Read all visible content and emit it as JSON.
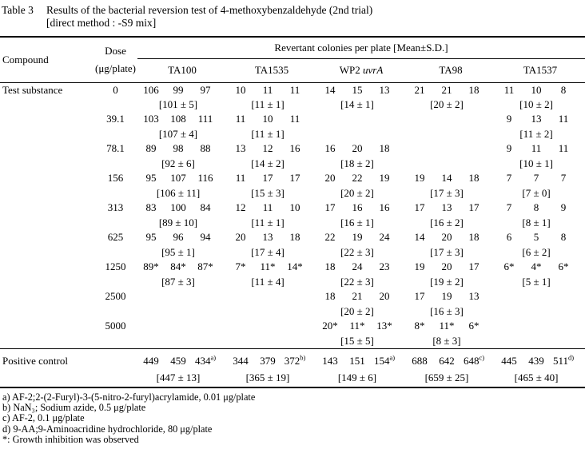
{
  "title": {
    "label": "Table 3",
    "line1": "Results of the bacterial reversion test of 4-methoxybenzaldehyde (2nd trial)",
    "line2": "[direct method : -S9 mix]"
  },
  "table": {
    "header": {
      "compound": "Compound",
      "dose_line1": "Dose",
      "dose_line2": "(μg/plate)",
      "span_header": "Revertant colonies per plate [Mean±S.D.]",
      "strains": [
        {
          "text": "TA100",
          "italic": ""
        },
        {
          "text": "TA1535",
          "italic": ""
        },
        {
          "text": "WP2 ",
          "italic": "uvrA"
        },
        {
          "text": "TA98",
          "italic": ""
        },
        {
          "text": "TA1537",
          "italic": ""
        }
      ]
    },
    "rows": [
      {
        "compound": "Test substance",
        "dose": "0",
        "values": [
          [
            "106",
            "99",
            "97"
          ],
          [
            "10",
            "11",
            "11"
          ],
          [
            "14",
            "15",
            "13"
          ],
          [
            "21",
            "21",
            "18"
          ],
          [
            "11",
            "10",
            "8"
          ]
        ],
        "means": [
          "[101 ± 5]",
          "[11 ± 1]",
          "[14 ± 1]",
          "[20 ± 2]",
          "[10 ± 2]"
        ]
      },
      {
        "compound": "",
        "dose": "39.1",
        "values": [
          [
            "103",
            "108",
            "111"
          ],
          [
            "11",
            "10",
            "11"
          ],
          [
            "",
            "",
            ""
          ],
          [
            "",
            "",
            ""
          ],
          [
            "9",
            "13",
            "11"
          ]
        ],
        "means": [
          "[107 ± 4]",
          "[11 ± 1]",
          "",
          "",
          "[11 ± 2]"
        ]
      },
      {
        "compound": "",
        "dose": "78.1",
        "values": [
          [
            "89",
            "98",
            "88"
          ],
          [
            "13",
            "12",
            "16"
          ],
          [
            "16",
            "20",
            "18"
          ],
          [
            "",
            "",
            ""
          ],
          [
            "9",
            "11",
            "11"
          ]
        ],
        "means": [
          "[92 ± 6]",
          "[14 ± 2]",
          "[18 ± 2]",
          "",
          "[10 ± 1]"
        ]
      },
      {
        "compound": "",
        "dose": "156",
        "values": [
          [
            "95",
            "107",
            "116"
          ],
          [
            "11",
            "17",
            "17"
          ],
          [
            "20",
            "22",
            "19"
          ],
          [
            "19",
            "14",
            "18"
          ],
          [
            "7",
            "7",
            "7"
          ]
        ],
        "means": [
          "[106 ± 11]",
          "[15 ± 3]",
          "[20 ± 2]",
          "[17 ± 3]",
          "[7 ± 0]"
        ]
      },
      {
        "compound": "",
        "dose": "313",
        "values": [
          [
            "83",
            "100",
            "84"
          ],
          [
            "12",
            "11",
            "10"
          ],
          [
            "17",
            "16",
            "16"
          ],
          [
            "17",
            "13",
            "17"
          ],
          [
            "7",
            "8",
            "9"
          ]
        ],
        "means": [
          "[89 ± 10]",
          "[11 ± 1]",
          "[16 ± 1]",
          "[16 ± 2]",
          "[8 ± 1]"
        ]
      },
      {
        "compound": "",
        "dose": "625",
        "values": [
          [
            "95",
            "96",
            "94"
          ],
          [
            "20",
            "13",
            "18"
          ],
          [
            "22",
            "19",
            "24"
          ],
          [
            "14",
            "20",
            "18"
          ],
          [
            "6",
            "5",
            "8"
          ]
        ],
        "means": [
          "[95 ± 1]",
          "[17 ± 4]",
          "[22 ± 3]",
          "[17 ± 3]",
          "[6 ± 2]"
        ]
      },
      {
        "compound": "",
        "dose": "1250",
        "values": [
          [
            "89*",
            "84*",
            "87*"
          ],
          [
            "7*",
            "11*",
            "14*"
          ],
          [
            "18",
            "24",
            "23"
          ],
          [
            "19",
            "20",
            "17"
          ],
          [
            "6*",
            "4*",
            "6*"
          ]
        ],
        "means": [
          "[87 ± 3]",
          "[11 ± 4]",
          "[22 ± 3]",
          "[19 ± 2]",
          "[5 ± 1]"
        ]
      },
      {
        "compound": "",
        "dose": "2500",
        "values": [
          [
            "",
            "",
            ""
          ],
          [
            "",
            "",
            ""
          ],
          [
            "18",
            "21",
            "20"
          ],
          [
            "17",
            "19",
            "13"
          ],
          [
            "",
            "",
            ""
          ]
        ],
        "means": [
          "",
          "",
          "[20 ± 2]",
          "[16 ± 3]",
          ""
        ]
      },
      {
        "compound": "",
        "dose": "5000",
        "values": [
          [
            "",
            "",
            ""
          ],
          [
            "",
            "",
            ""
          ],
          [
            "20*",
            "11*",
            "13*"
          ],
          [
            "8*",
            "11*",
            "6*"
          ],
          [
            "",
            "",
            ""
          ]
        ],
        "means": [
          "",
          "",
          "[15 ± 5]",
          "[8 ± 3]",
          ""
        ]
      }
    ],
    "positive_control": {
      "compound": "Positive control",
      "dose": "",
      "values": [
        [
          "449",
          "459",
          "434"
        ],
        [
          "344",
          "379",
          "372"
        ],
        [
          "143",
          "151",
          "154"
        ],
        [
          "688",
          "642",
          "648"
        ],
        [
          "445",
          "439",
          "511"
        ]
      ],
      "sups": [
        "a)",
        "b)",
        "a)",
        "c)",
        "d)"
      ],
      "means": [
        "[447 ± 13]",
        "[365 ± 19]",
        "[149 ± 6]",
        "[659 ± 25]",
        "[465 ± 40]"
      ]
    }
  },
  "footnotes": [
    "a) AF-2;2-(2-Furyl)-3-(5-nitro-2-furyl)acrylamide, 0.01 μg/plate",
    "b) NaN₃; Sodium azide, 0.5 μg/plate",
    "c) AF-2, 0.1 μg/plate",
    "d) 9-AA;9-Aminoacridine hydrochloride, 80 μg/plate",
    "*: Growth inhibition was observed"
  ]
}
